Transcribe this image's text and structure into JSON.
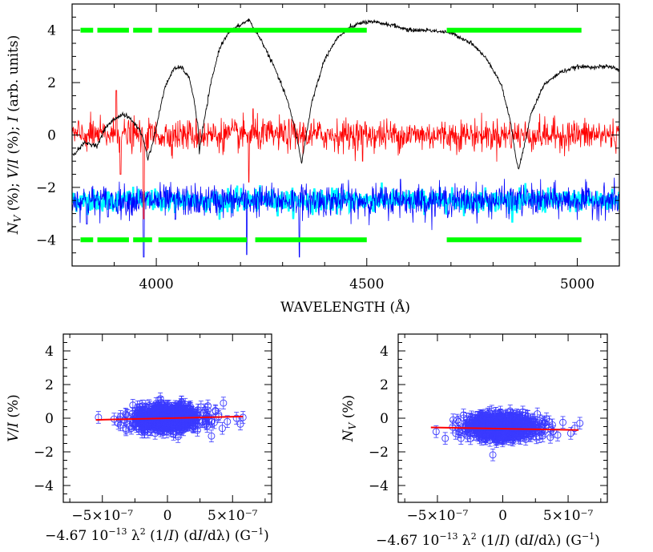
{
  "chart_data": [
    {
      "type": "line",
      "xlabel": "WAVELENGTH (Å)",
      "ylabel": "N_V (%); V/I (%); I (arb. units)",
      "xlim": [
        3800,
        5100
      ],
      "ylim": [
        -5,
        5
      ],
      "xticks": [
        "4000",
        "4500",
        "5000"
      ],
      "yticks": [
        "−4",
        "−2",
        "0",
        "2",
        "4"
      ],
      "grid": false,
      "series": [
        {
          "color": "#000000",
          "role": "intensity",
          "values_desc": "arbitrary units, offset",
          "x": [
            3800,
            3830,
            3860,
            3880,
            3900,
            3920,
            3940,
            3960,
            3970,
            3980,
            3990,
            4000,
            4020,
            4040,
            4060,
            4080,
            4090,
            4100,
            4102,
            4110,
            4130,
            4150,
            4170,
            4190,
            4210,
            4220,
            4230,
            4250,
            4280,
            4310,
            4330,
            4340,
            4345,
            4350,
            4370,
            4400,
            4430,
            4460,
            4490,
            4520,
            4560,
            4600,
            4650,
            4700,
            4750,
            4790,
            4820,
            4840,
            4855,
            4861,
            4870,
            4890,
            4920,
            4960,
            5000,
            5040,
            5080,
            5100
          ],
          "y": [
            -0.8,
            -0.3,
            -0.4,
            0.3,
            0.6,
            0.8,
            0.6,
            0.2,
            -0.2,
            -0.9,
            -0.4,
            0.3,
            1.8,
            2.5,
            2.6,
            2.1,
            1.3,
            0.2,
            -0.7,
            0.2,
            2.0,
            3.3,
            3.9,
            4.1,
            4.3,
            4.4,
            4.1,
            3.6,
            2.6,
            1.4,
            0.2,
            -0.6,
            -1.1,
            -0.6,
            1.3,
            2.9,
            3.7,
            4.1,
            4.3,
            4.3,
            4.2,
            4.0,
            4.0,
            3.9,
            3.5,
            2.8,
            1.9,
            0.6,
            -0.9,
            -1.3,
            -0.7,
            0.8,
            1.9,
            2.4,
            2.6,
            2.6,
            2.6,
            2.5
          ]
        },
        {
          "color": "#ff0000",
          "role": "stokes-V",
          "mean": 0.0,
          "noise_amplitude": 0.3
        },
        {
          "color": "#00ffff",
          "role": "null-band",
          "mean": -2.5,
          "noise_amplitude": 0.35
        },
        {
          "color": "#0000ff",
          "role": "null-N",
          "mean": -2.5,
          "noise_amplitude": 0.3
        }
      ],
      "masks": {
        "color": "#00ff00",
        "upper_y": 4,
        "lower_y": -4,
        "upper_ranges": [
          [
            3820,
            3850
          ],
          [
            3860,
            3935
          ],
          [
            3945,
            3990
          ],
          [
            4005,
            4500
          ],
          [
            4690,
            5010
          ]
        ],
        "lower_ranges": [
          [
            3820,
            3850
          ],
          [
            3860,
            3935
          ],
          [
            3945,
            3990
          ],
          [
            4005,
            4215
          ],
          [
            4235,
            4500
          ],
          [
            4690,
            5010
          ]
        ]
      }
    },
    {
      "type": "scatter",
      "xlabel": "−4.67 10⁻¹³ λ² (1/I) (dI/dλ) (G⁻¹)",
      "ylabel": "V/I (%)",
      "xlim": [
        -8e-07,
        8e-07
      ],
      "ylim": [
        -5,
        5
      ],
      "xticks": [
        "−5×10⁻⁷",
        "0",
        "5×10⁻⁷"
      ],
      "yticks": [
        "−4",
        "−2",
        "0",
        "2",
        "4"
      ],
      "points_color": "#3a3aff",
      "fit": {
        "color": "#ff0000",
        "x": [
          -5.5e-07,
          5.8e-07
        ],
        "y": [
          -0.1,
          0.1
        ]
      },
      "cloud": {
        "center_y": 0.0,
        "spread_y": 0.35,
        "spread_x": 2.2e-07
      },
      "outliers": [
        [
          -5.3e-07,
          0.05
        ],
        [
          -4.1e-07,
          -0.05
        ],
        [
          -3.6e-07,
          0.1
        ],
        [
          -3.2e-07,
          -0.6
        ],
        [
          3.7e-07,
          0.4
        ],
        [
          4.3e-07,
          0.9
        ],
        [
          4.6e-07,
          -0.2
        ],
        [
          5.3e-07,
          0.0
        ],
        [
          5.6e-07,
          -0.35
        ],
        [
          5.8e-07,
          0.05
        ],
        [
          2.9e-07,
          0.5
        ],
        [
          -2.9e-07,
          -0.5
        ]
      ]
    },
    {
      "type": "scatter",
      "xlabel": "−4.67 10⁻¹³ λ² (1/I) (dI/dλ) (G⁻¹)",
      "ylabel": "N_V (%)",
      "xlim": [
        -8e-07,
        8e-07
      ],
      "ylim": [
        -5,
        5
      ],
      "xticks": [
        "−5×10⁻⁷",
        "0",
        "5×10⁻⁷"
      ],
      "yticks": [
        "−4",
        "−2",
        "0",
        "2",
        "4"
      ],
      "points_color": "#3a3aff",
      "fit": {
        "color": "#ff0000",
        "x": [
          -5.5e-07,
          5.8e-07
        ],
        "y": [
          -0.55,
          -0.7
        ]
      },
      "cloud": {
        "center_y": -0.5,
        "spread_y": 0.35,
        "spread_x": 2.2e-07
      },
      "outliers": [
        [
          -5.1e-07,
          -0.8
        ],
        [
          -4.4e-07,
          -1.2
        ],
        [
          -3.8e-07,
          -0.1
        ],
        [
          -3.6e-07,
          -0.9
        ],
        [
          -3.2e-07,
          -1.2
        ],
        [
          3.8e-07,
          -0.4
        ],
        [
          4.2e-07,
          -1.0
        ],
        [
          4.6e-07,
          -0.25
        ],
        [
          5.2e-07,
          -0.9
        ],
        [
          5.5e-07,
          -0.6
        ],
        [
          5.9e-07,
          -0.3
        ],
        [
          2.8e-07,
          -1.1
        ]
      ]
    }
  ]
}
